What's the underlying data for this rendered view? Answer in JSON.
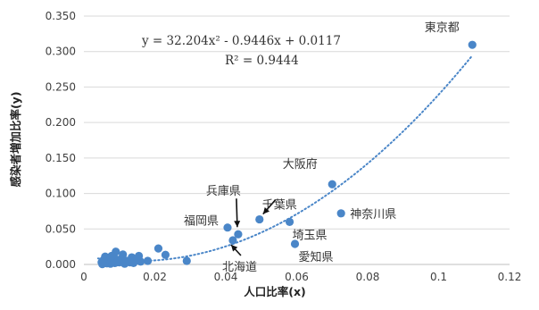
{
  "chart_data": {
    "type": "scatter",
    "xlabel": "人口比率(x)",
    "ylabel": "感染者増加比率(y)",
    "xlim": [
      0,
      0.12
    ],
    "ylim": [
      0,
      0.35
    ],
    "x_ticks": [
      "0",
      "0.02",
      "0.04",
      "0.06",
      "0.08",
      "0.1",
      "0.12"
    ],
    "y_ticks": [
      "0.000",
      "0.050",
      "0.100",
      "0.150",
      "0.200",
      "0.250",
      "0.300",
      "0.350"
    ],
    "grid": "horizontal",
    "point_color": "#4a86c8",
    "trendline": {
      "type": "polynomial",
      "coefficients": [
        32.204,
        -0.9446,
        0.0117
      ],
      "equation": "y = 32.204x² - 0.9446x + 0.0117",
      "r_squared": "R² = 0.9444",
      "color": "#4a86c8",
      "style": "dotted"
    },
    "labeled_points": [
      {
        "label": "東京都",
        "x": 0.1095,
        "y": 0.3095
      },
      {
        "label": "大阪府",
        "x": 0.07,
        "y": 0.113
      },
      {
        "label": "神奈川県",
        "x": 0.0725,
        "y": 0.072
      },
      {
        "label": "埼玉県",
        "x": 0.058,
        "y": 0.06
      },
      {
        "label": "愛知県",
        "x": 0.0595,
        "y": 0.029
      },
      {
        "label": "千葉県",
        "x": 0.0495,
        "y": 0.0635
      },
      {
        "label": "兵庫県",
        "x": 0.0435,
        "y": 0.0425
      },
      {
        "label": "福岡県",
        "x": 0.0405,
        "y": 0.052
      },
      {
        "label": "北海道",
        "x": 0.042,
        "y": 0.034
      }
    ],
    "points": [
      {
        "x": 0.029,
        "y": 0.005
      },
      {
        "x": 0.023,
        "y": 0.0135
      },
      {
        "x": 0.021,
        "y": 0.0225
      },
      {
        "x": 0.018,
        "y": 0.005
      },
      {
        "x": 0.016,
        "y": 0.004
      },
      {
        "x": 0.0155,
        "y": 0.012
      },
      {
        "x": 0.015,
        "y": 0.007
      },
      {
        "x": 0.014,
        "y": 0.002
      },
      {
        "x": 0.0135,
        "y": 0.01
      },
      {
        "x": 0.013,
        "y": 0.003
      },
      {
        "x": 0.012,
        "y": 0.005
      },
      {
        "x": 0.0115,
        "y": 0.001
      },
      {
        "x": 0.011,
        "y": 0.014
      },
      {
        "x": 0.0105,
        "y": 0.008
      },
      {
        "x": 0.01,
        "y": 0.003
      },
      {
        "x": 0.0095,
        "y": 0.006
      },
      {
        "x": 0.009,
        "y": 0.018
      },
      {
        "x": 0.0088,
        "y": 0.002
      },
      {
        "x": 0.0085,
        "y": 0.01
      },
      {
        "x": 0.008,
        "y": 0.004
      },
      {
        "x": 0.0078,
        "y": 0.012
      },
      {
        "x": 0.0075,
        "y": 0.001
      },
      {
        "x": 0.0072,
        "y": 0.007
      },
      {
        "x": 0.007,
        "y": 0.003
      },
      {
        "x": 0.0068,
        "y": 0.009
      },
      {
        "x": 0.0065,
        "y": 0.0015
      },
      {
        "x": 0.0062,
        "y": 0.005
      },
      {
        "x": 0.006,
        "y": 0.011
      },
      {
        "x": 0.0058,
        "y": 0.0025
      },
      {
        "x": 0.0055,
        "y": 0.006
      },
      {
        "x": 0.0052,
        "y": 0.0005
      },
      {
        "x": 0.005,
        "y": 0.003
      }
    ]
  }
}
